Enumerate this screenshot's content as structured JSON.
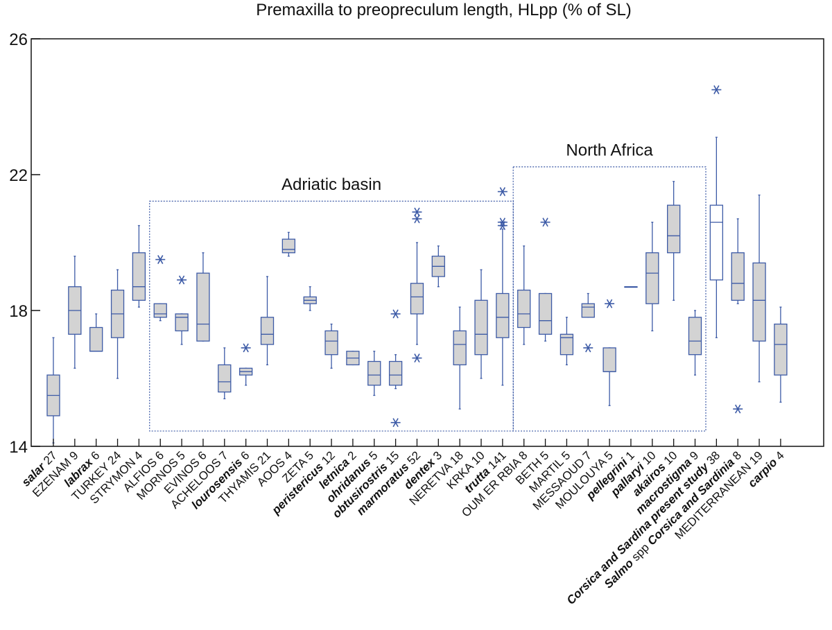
{
  "chart_data": {
    "type": "boxplot",
    "title": "Premaxilla to preopreculum length, HLpp (% of SL)",
    "ylim": [
      14,
      26
    ],
    "yticks": [
      "26",
      "22",
      "18",
      "14"
    ],
    "style": {
      "box_stroke": "#3c5aa6",
      "box_fill": "#d3d3d3",
      "axis": "#111111"
    },
    "groups": [
      {
        "label": "Adriatic basin",
        "from": 5,
        "to": 21
      },
      {
        "label": "North Africa",
        "from": 22,
        "to": 30
      }
    ],
    "categories": [
      {
        "parts": [
          {
            "t": "salar",
            "b": true
          },
          {
            "t": " 27",
            "b": false
          }
        ],
        "min": 14.1,
        "q1": 14.9,
        "median": 15.5,
        "q3": 16.1,
        "max": 17.2,
        "outliers": [],
        "fill": true
      },
      {
        "parts": [
          {
            "t": "EZENAM 9",
            "b": false
          }
        ],
        "min": 16.3,
        "q1": 17.3,
        "median": 18.0,
        "q3": 18.7,
        "max": 19.6,
        "outliers": [],
        "fill": true
      },
      {
        "parts": [
          {
            "t": "labrax",
            "b": true
          },
          {
            "t": " 6",
            "b": false
          }
        ],
        "min": 16.8,
        "q1": 16.8,
        "median": 16.8,
        "q3": 17.5,
        "max": 17.9,
        "outliers": [],
        "fill": true
      },
      {
        "parts": [
          {
            "t": "TURKEY 24",
            "b": false
          }
        ],
        "min": 16.0,
        "q1": 17.2,
        "median": 17.9,
        "q3": 18.6,
        "max": 19.2,
        "outliers": [],
        "fill": true
      },
      {
        "parts": [
          {
            "t": "STRYMON 4",
            "b": false
          }
        ],
        "min": 18.1,
        "q1": 18.3,
        "median": 18.7,
        "q3": 19.7,
        "max": 20.5,
        "outliers": [],
        "fill": true
      },
      {
        "parts": [
          {
            "t": "ALFIOS 6",
            "b": false
          }
        ],
        "min": 17.7,
        "q1": 17.8,
        "median": 17.9,
        "q3": 18.2,
        "max": 18.2,
        "outliers": [
          19.5
        ],
        "fill": true
      },
      {
        "parts": [
          {
            "t": "MORNOS 5",
            "b": false
          }
        ],
        "min": 17.0,
        "q1": 17.4,
        "median": 17.8,
        "q3": 17.9,
        "max": 17.9,
        "outliers": [
          18.9
        ],
        "fill": true
      },
      {
        "parts": [
          {
            "t": "EVINOS 6",
            "b": false
          }
        ],
        "min": 17.1,
        "q1": 17.1,
        "median": 17.6,
        "q3": 19.1,
        "max": 19.7,
        "outliers": [],
        "fill": true
      },
      {
        "parts": [
          {
            "t": "ACHELOOS 7",
            "b": false
          }
        ],
        "min": 15.4,
        "q1": 15.6,
        "median": 15.9,
        "q3": 16.4,
        "max": 16.9,
        "outliers": [],
        "fill": true
      },
      {
        "parts": [
          {
            "t": "lourosensis",
            "b": true
          },
          {
            "t": " 6",
            "b": false
          }
        ],
        "min": 15.8,
        "q1": 16.1,
        "median": 16.2,
        "q3": 16.3,
        "max": 16.3,
        "outliers": [
          16.9
        ],
        "fill": true
      },
      {
        "parts": [
          {
            "t": "THYAMIS 21",
            "b": false
          }
        ],
        "min": 16.4,
        "q1": 17.0,
        "median": 17.3,
        "q3": 17.8,
        "max": 19.0,
        "outliers": [],
        "fill": true
      },
      {
        "parts": [
          {
            "t": "AOOS 4",
            "b": false
          }
        ],
        "min": 19.6,
        "q1": 19.7,
        "median": 19.8,
        "q3": 20.1,
        "max": 20.3,
        "outliers": [],
        "fill": true
      },
      {
        "parts": [
          {
            "t": "ZETA 5",
            "b": false
          }
        ],
        "min": 18.0,
        "q1": 18.2,
        "median": 18.3,
        "q3": 18.4,
        "max": 18.7,
        "outliers": [],
        "fill": true
      },
      {
        "parts": [
          {
            "t": "peristericus",
            "b": true
          },
          {
            "t": " 12",
            "b": false
          }
        ],
        "min": 16.3,
        "q1": 16.7,
        "median": 17.1,
        "q3": 17.4,
        "max": 17.6,
        "outliers": [],
        "fill": true
      },
      {
        "parts": [
          {
            "t": "letnica",
            "b": true
          },
          {
            "t": " 2",
            "b": false
          }
        ],
        "min": 16.4,
        "q1": 16.4,
        "median": 16.6,
        "q3": 16.8,
        "max": 16.8,
        "outliers": [],
        "fill": true
      },
      {
        "parts": [
          {
            "t": "ohridanus",
            "b": true
          },
          {
            "t": "  5",
            "b": false
          }
        ],
        "min": 15.5,
        "q1": 15.8,
        "median": 16.1,
        "q3": 16.5,
        "max": 16.8,
        "outliers": [],
        "fill": true
      },
      {
        "parts": [
          {
            "t": "obtusirostris",
            "b": true
          },
          {
            "t": " 15",
            "b": false
          }
        ],
        "min": 15.7,
        "q1": 15.8,
        "median": 16.1,
        "q3": 16.5,
        "max": 16.7,
        "outliers": [
          17.9,
          14.7
        ],
        "fill": true
      },
      {
        "parts": [
          {
            "t": "marmoratus",
            "b": true
          },
          {
            "t": " 52",
            "b": false
          }
        ],
        "min": 17.0,
        "q1": 17.9,
        "median": 18.4,
        "q3": 18.8,
        "max": 20.0,
        "outliers": [
          20.9,
          20.7,
          16.6
        ],
        "fill": true
      },
      {
        "parts": [
          {
            "t": "dentex",
            "b": true
          },
          {
            "t": " 3",
            "b": false
          }
        ],
        "min": 18.7,
        "q1": 19.0,
        "median": 19.3,
        "q3": 19.6,
        "max": 19.9,
        "outliers": [],
        "fill": true
      },
      {
        "parts": [
          {
            "t": "NERETVA 18",
            "b": false
          }
        ],
        "min": 15.1,
        "q1": 16.4,
        "median": 17.0,
        "q3": 17.4,
        "max": 18.1,
        "outliers": [],
        "fill": true
      },
      {
        "parts": [
          {
            "t": "KRKA 10",
            "b": false
          }
        ],
        "min": 16.0,
        "q1": 16.7,
        "median": 17.3,
        "q3": 18.3,
        "max": 19.2,
        "outliers": [],
        "fill": true
      },
      {
        "parts": [
          {
            "t": "trutta",
            "b": true
          },
          {
            "t": " 141",
            "b": false
          }
        ],
        "min": 15.8,
        "q1": 17.2,
        "median": 17.8,
        "q3": 18.5,
        "max": 20.4,
        "outliers": [
          21.5,
          20.6,
          20.5
        ],
        "fill": true
      },
      {
        "parts": [
          {
            "t": "OUM ER RBIA 8",
            "b": false
          }
        ],
        "min": 17.0,
        "q1": 17.5,
        "median": 17.9,
        "q3": 18.6,
        "max": 19.9,
        "outliers": [],
        "fill": true
      },
      {
        "parts": [
          {
            "t": "BETH 5",
            "b": false
          }
        ],
        "min": 17.1,
        "q1": 17.3,
        "median": 17.7,
        "q3": 18.5,
        "max": 18.5,
        "outliers": [
          20.6
        ],
        "fill": true
      },
      {
        "parts": [
          {
            "t": "MARTIL 5",
            "b": false
          }
        ],
        "min": 16.4,
        "q1": 16.7,
        "median": 17.2,
        "q3": 17.3,
        "max": 17.8,
        "outliers": [],
        "fill": true
      },
      {
        "parts": [
          {
            "t": "MESSAOUD 7",
            "b": false
          }
        ],
        "min": 17.8,
        "q1": 17.8,
        "median": 18.1,
        "q3": 18.2,
        "max": 18.5,
        "outliers": [
          16.9
        ],
        "fill": true
      },
      {
        "parts": [
          {
            "t": "MOULOUYA 5",
            "b": false
          }
        ],
        "min": 15.2,
        "q1": 16.2,
        "median": 16.2,
        "q3": 16.9,
        "max": 16.9,
        "outliers": [
          18.2
        ],
        "fill": true
      },
      {
        "parts": [
          {
            "t": "pellegrini",
            "b": true
          },
          {
            "t": " 1",
            "b": false
          }
        ],
        "min": 18.7,
        "q1": 18.7,
        "median": 18.7,
        "q3": 18.7,
        "max": 18.7,
        "outliers": [],
        "fill": true
      },
      {
        "parts": [
          {
            "t": "pallaryi",
            "b": true
          },
          {
            "t": " 10",
            "b": false
          }
        ],
        "min": 17.4,
        "q1": 18.2,
        "median": 19.1,
        "q3": 19.7,
        "max": 20.6,
        "outliers": [],
        "fill": true
      },
      {
        "parts": [
          {
            "t": "akairos",
            "b": true
          },
          {
            "t": " 10",
            "b": false
          }
        ],
        "min": 18.3,
        "q1": 19.7,
        "median": 20.2,
        "q3": 21.1,
        "max": 21.8,
        "outliers": [],
        "fill": true
      },
      {
        "parts": [
          {
            "t": "macrostigma",
            "b": true
          },
          {
            "t": " 9",
            "b": false
          }
        ],
        "min": 16.1,
        "q1": 16.7,
        "median": 17.1,
        "q3": 17.8,
        "max": 18.0,
        "outliers": [],
        "fill": true
      },
      {
        "parts": [
          {
            "t": "Corsica and Sardina present study",
            "b": true
          },
          {
            "t": " 38",
            "b": false
          }
        ],
        "min": 17.2,
        "q1": 18.9,
        "median": 20.6,
        "q3": 21.1,
        "max": 23.1,
        "outliers": [
          24.5
        ],
        "fill": false
      },
      {
        "parts": [
          {
            "t": "Salmo",
            "b": true
          },
          {
            "t": " spp ",
            "b": false
          },
          {
            "t": "Corsica and Sardinia",
            "b": true
          },
          {
            "t": " 8",
            "b": false
          }
        ],
        "min": 18.2,
        "q1": 18.3,
        "median": 18.8,
        "q3": 19.7,
        "max": 20.7,
        "outliers": [
          15.1
        ],
        "fill": true
      },
      {
        "parts": [
          {
            "t": "MEDITERRANEAN 19",
            "b": false
          }
        ],
        "min": 15.9,
        "q1": 17.1,
        "median": 18.3,
        "q3": 19.4,
        "max": 21.4,
        "outliers": [],
        "fill": true
      },
      {
        "parts": [
          {
            "t": "carpio",
            "b": true
          },
          {
            "t": " 4",
            "b": false
          }
        ],
        "min": 15.3,
        "q1": 16.1,
        "median": 17.0,
        "q3": 17.6,
        "max": 18.1,
        "outliers": [],
        "fill": true
      }
    ]
  }
}
